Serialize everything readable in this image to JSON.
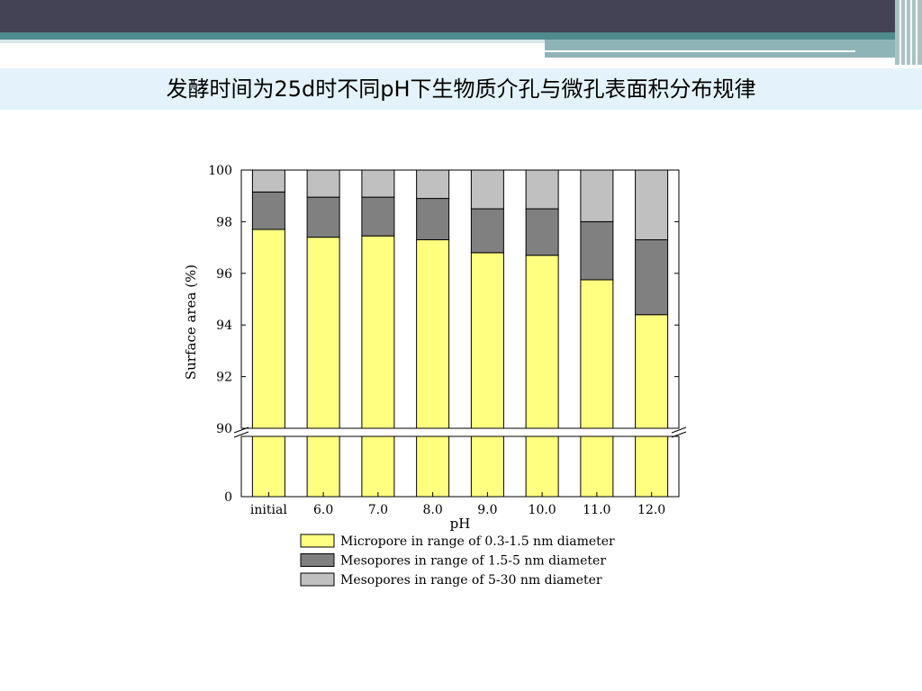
{
  "slide": {
    "title": "发酵时间为25d时不同pH下生物质介孔与微孔表面积分布规律"
  },
  "colors": {
    "header_dark": "#434355",
    "header_teal": "#4f8a8e",
    "title_band": "#e4f3fb"
  },
  "chart_data": {
    "type": "bar",
    "stacked": true,
    "xlabel": "pH",
    "ylabel": "Surface area (%)",
    "categories": [
      "initial",
      "6.0",
      "7.0",
      "8.0",
      "9.0",
      "10.0",
      "11.0",
      "12.0"
    ],
    "y_break": {
      "lower": [
        0,
        0
      ],
      "upper": [
        90,
        100
      ]
    },
    "y_ticks": [
      "0",
      "90",
      "92",
      "94",
      "96",
      "98",
      "100"
    ],
    "series": [
      {
        "name": "Micropore in range of 0.3-1.5 nm diameter",
        "color": "#ffff80",
        "values": [
          97.7,
          97.4,
          97.45,
          97.3,
          96.8,
          96.7,
          95.75,
          94.4
        ]
      },
      {
        "name": "Mesopores in range of 1.5-5 nm diameter",
        "color": "#808080",
        "values": [
          1.45,
          1.55,
          1.5,
          1.6,
          1.7,
          1.8,
          2.25,
          2.9
        ]
      },
      {
        "name": "Mesopores in range of 5-30 nm diameter",
        "color": "#c0c0c0",
        "values": [
          0.85,
          1.05,
          1.05,
          1.1,
          1.5,
          1.5,
          2.0,
          2.7
        ]
      }
    ],
    "grid": false,
    "legend_position": "bottom"
  }
}
